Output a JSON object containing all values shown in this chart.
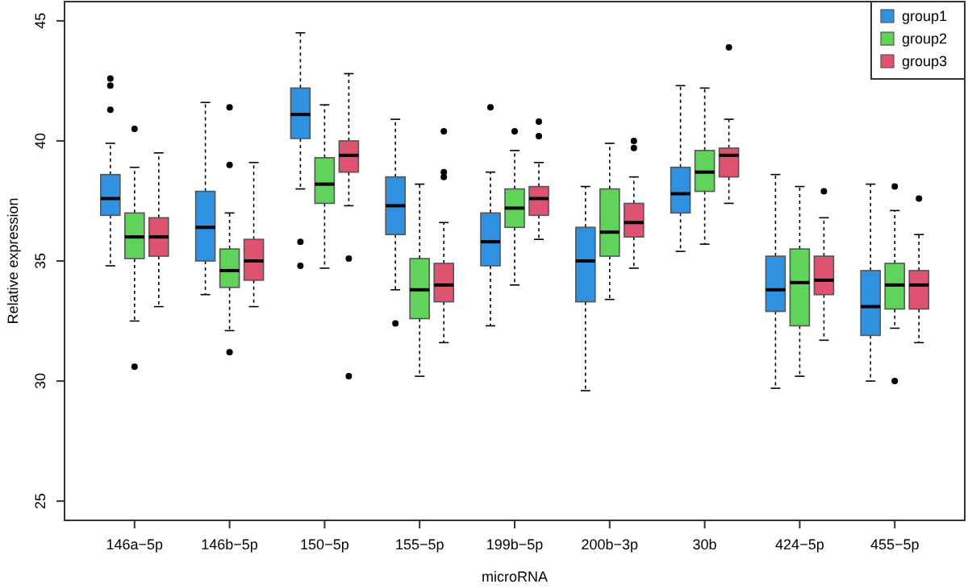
{
  "chart_data": {
    "type": "box",
    "xlabel": "microRNA",
    "ylabel": "Relative expression",
    "categories": [
      "146a−5p",
      "146b−5p",
      "150−5p",
      "155−5p",
      "199b−5p",
      "200b−3p",
      "30b",
      "424−5p",
      "455−5p"
    ],
    "ylim": [
      24.2,
      45.8
    ],
    "yticks": [
      25,
      30,
      35,
      40,
      45
    ],
    "legend": "top right",
    "grid": false,
    "series": [
      {
        "name": "group1",
        "color": "#2f91e0",
        "boxes": [
          {
            "low": 34.8,
            "q1": 36.9,
            "median": 37.6,
            "q3": 38.6,
            "high": 39.9,
            "outliers": [
              42.6,
              42.3,
              41.3
            ]
          },
          {
            "low": 33.6,
            "q1": 35,
            "median": 36.4,
            "q3": 37.9,
            "high": 41.6
          },
          {
            "low": 38,
            "q1": 40.1,
            "median": 41.1,
            "q3": 42.2,
            "high": 44.5,
            "outliers": [
              35.8,
              34.8
            ]
          },
          {
            "low": 33.8,
            "q1": 36.1,
            "median": 37.3,
            "q3": 38.5,
            "high": 40.9,
            "outliers": [
              32.4
            ]
          },
          {
            "low": 32.3,
            "q1": 34.8,
            "median": 35.8,
            "q3": 37,
            "high": 38.7,
            "outliers": [
              41.4
            ]
          },
          {
            "low": 29.6,
            "q1": 33.3,
            "median": 35,
            "q3": 36.4,
            "high": 38.1
          },
          {
            "low": 35.4,
            "q1": 37,
            "median": 37.8,
            "q3": 38.9,
            "high": 42.3
          },
          {
            "low": 29.7,
            "q1": 32.9,
            "median": 33.8,
            "q3": 35.2,
            "high": 38.6
          },
          {
            "low": 30,
            "q1": 31.9,
            "median": 33.1,
            "q3": 34.6,
            "high": 38.2
          }
        ]
      },
      {
        "name": "group2",
        "color": "#5fd35a",
        "boxes": [
          {
            "low": 32.5,
            "q1": 35.1,
            "median": 36,
            "q3": 37,
            "high": 38.9,
            "outliers": [
              40.5,
              30.6
            ]
          },
          {
            "low": 32.1,
            "q1": 33.9,
            "median": 34.6,
            "q3": 35.5,
            "high": 37,
            "outliers": [
              41.4,
              39,
              31.2
            ]
          },
          {
            "low": 34.7,
            "q1": 37.4,
            "median": 38.2,
            "q3": 39.3,
            "high": 41.5
          },
          {
            "low": 30.2,
            "q1": 32.6,
            "median": 33.8,
            "q3": 35.1,
            "high": 38.2
          },
          {
            "low": 34,
            "q1": 36.4,
            "median": 37.2,
            "q3": 38,
            "high": 39.6,
            "outliers": [
              40.4
            ]
          },
          {
            "low": 33.4,
            "q1": 35.2,
            "median": 36.2,
            "q3": 38,
            "high": 39.9
          },
          {
            "low": 35.7,
            "q1": 37.9,
            "median": 38.7,
            "q3": 39.6,
            "high": 42.2
          },
          {
            "low": 30.2,
            "q1": 32.3,
            "median": 34.1,
            "q3": 35.5,
            "high": 38.1
          },
          {
            "low": 32.2,
            "q1": 33,
            "median": 34,
            "q3": 34.9,
            "high": 37.1,
            "outliers": [
              38.1,
              30
            ]
          }
        ]
      },
      {
        "name": "group3",
        "color": "#de5470",
        "boxes": [
          {
            "low": 33.1,
            "q1": 35.2,
            "median": 36,
            "q3": 36.8,
            "high": 39.5
          },
          {
            "low": 33.1,
            "q1": 34.2,
            "median": 35,
            "q3": 35.9,
            "high": 39.1
          },
          {
            "low": 37.3,
            "q1": 38.7,
            "median": 39.4,
            "q3": 40,
            "high": 42.8,
            "outliers": [
              35.1,
              30.2
            ]
          },
          {
            "low": 31.6,
            "q1": 33.3,
            "median": 34,
            "q3": 34.9,
            "high": 36.6,
            "outliers": [
              40.4,
              38.7,
              38.5
            ]
          },
          {
            "low": 35.9,
            "q1": 36.9,
            "median": 37.6,
            "q3": 38.1,
            "high": 39.1,
            "outliers": [
              40.8,
              40.2
            ]
          },
          {
            "low": 34.7,
            "q1": 36,
            "median": 36.6,
            "q3": 37.4,
            "high": 38.5,
            "outliers": [
              40,
              39.7
            ]
          },
          {
            "low": 37.4,
            "q1": 38.5,
            "median": 39.4,
            "q3": 39.7,
            "high": 40.9,
            "outliers": [
              43.9
            ]
          },
          {
            "low": 31.7,
            "q1": 33.6,
            "median": 34.2,
            "q3": 35.2,
            "high": 36.8,
            "outliers": [
              37.9
            ]
          },
          {
            "low": 31.6,
            "q1": 33,
            "median": 34,
            "q3": 34.6,
            "high": 36.1,
            "outliers": [
              37.6
            ]
          }
        ]
      }
    ]
  }
}
